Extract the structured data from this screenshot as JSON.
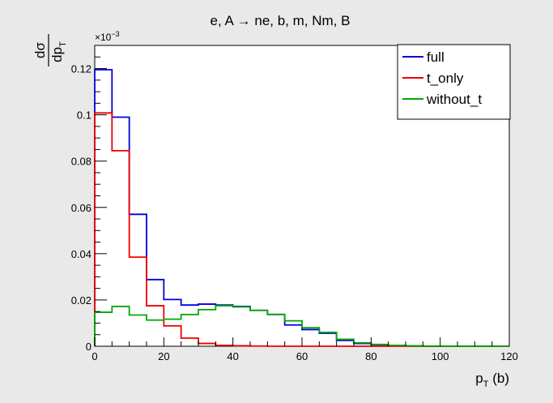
{
  "chart_data": {
    "type": "line",
    "title_parts": {
      "left": "e, A ",
      "arrow": "→",
      "right": " ne, b, m, Nm, B"
    },
    "xlabel_main": "p",
    "xlabel_sub": "T",
    "xlabel_tail": " (b)",
    "ylabel_num": "dσ",
    "ylabel_den_main": "dp",
    "ylabel_den_sub": "T",
    "y_multiplier": "×10",
    "y_multiplier_exp": "−3",
    "xlim": [
      0,
      120
    ],
    "ylim": [
      0,
      0.13
    ],
    "x_ticks": [
      0,
      20,
      40,
      60,
      80,
      100,
      120
    ],
    "y_ticks": [
      0,
      0.02,
      0.04,
      0.06,
      0.08,
      0.1,
      0.12
    ],
    "y_tick_labels": [
      "0",
      "0.02",
      "0.04",
      "0.06",
      "0.08",
      "0.1",
      "0.12"
    ],
    "bin_edges": [
      0,
      5,
      10,
      15,
      20,
      25,
      30,
      35,
      40,
      45,
      50,
      55,
      60,
      65,
      70,
      75,
      80,
      85,
      90,
      95,
      100,
      105,
      110,
      115,
      120
    ],
    "legend_position": "top-right",
    "series": [
      {
        "name": "full",
        "color": "#0000dd",
        "values": [
          0.1195,
          0.099,
          0.057,
          0.0288,
          0.0202,
          0.0178,
          0.0182,
          0.0178,
          0.0172,
          0.0155,
          0.0137,
          0.0092,
          0.0072,
          0.0056,
          0.0025,
          0.0012,
          0.0006,
          0.0003,
          0.0001,
          0,
          0,
          0,
          0,
          0
        ]
      },
      {
        "name": "t_only",
        "color": "#ee0000",
        "values": [
          0.1008,
          0.0845,
          0.0385,
          0.0175,
          0.0088,
          0.0035,
          0.0012,
          0.0004,
          0.0002,
          0.0001,
          0,
          0,
          0,
          0,
          0,
          0,
          0,
          0,
          0,
          0,
          0,
          0,
          0,
          0
        ]
      },
      {
        "name": "without_t",
        "color": "#00aa00",
        "values": [
          0.0147,
          0.0172,
          0.0135,
          0.0113,
          0.0117,
          0.0137,
          0.0158,
          0.0175,
          0.017,
          0.0155,
          0.0138,
          0.011,
          0.008,
          0.006,
          0.003,
          0.0015,
          0.0008,
          0.0004,
          0.0002,
          0.0001,
          0,
          0,
          0,
          0
        ]
      }
    ]
  }
}
